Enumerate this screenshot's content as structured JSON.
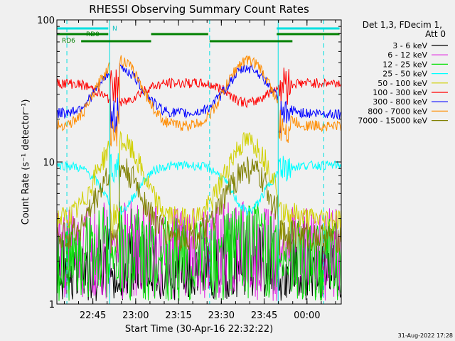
{
  "chart_data": {
    "type": "line",
    "title": "RHESSI Observing Summary Count Rates",
    "xlabel": "Start Time (30-Apr-16 22:32:22)",
    "ylabel": "Count Rate (s⁻¹ detector⁻¹)",
    "yscale": "log",
    "ylim": [
      1,
      100
    ],
    "y_tick_labels": [
      "1",
      "10",
      "100"
    ],
    "xlim": [
      "22:32:22",
      "00:12:00"
    ],
    "x_tick_labels": [
      "22:45",
      "23:00",
      "23:15",
      "23:30",
      "23:45",
      "00:00"
    ],
    "x_ticks_min": [
      12.6,
      27.6,
      42.6,
      57.6,
      72.6,
      87.6
    ],
    "legend_title": [
      "Det 1,3, FDecim 1,",
      "Att 0"
    ],
    "legend_position": "right",
    "flag_labels": {
      "rd0": "RD0",
      "rd6": "RD6",
      "n": "N"
    },
    "flag_bars": {
      "n": [
        [
          0,
          18
        ],
        [
          77,
          99
        ]
      ],
      "rd0": [
        [
          0,
          18
        ],
        [
          33,
          53
        ],
        [
          77,
          99
        ]
      ],
      "rd6": [
        [
          8.5,
          33
        ],
        [
          53.5,
          82.5
        ]
      ]
    },
    "eclipse_lines": [
      18.5,
      77.5
    ],
    "dashed_lines": [
      3.5,
      53.5,
      93.5
    ],
    "series": [
      {
        "name": "3 - 6 keV",
        "color": "#000000",
        "profile": "noise",
        "base": 2.0,
        "peak": 2.6,
        "night": 1.5
      },
      {
        "name": "6 - 12 keV",
        "color": "#e020e0",
        "profile": "noise",
        "base": 3.3,
        "peak": 3.8,
        "night": 2.6
      },
      {
        "name": "12 - 25 keV",
        "color": "#00e000",
        "profile": "noise",
        "base": 2.8,
        "peak": 3.6,
        "night": 2.0
      },
      {
        "name": "25 - 50 keV",
        "color": "#00ffff",
        "profile": "orbit",
        "base": 9.5,
        "peak": 4.5,
        "night": 9.5
      },
      {
        "name": "50 - 100 keV",
        "color": "#d0d000",
        "profile": "orbit",
        "base": 4.0,
        "peak": 14.0,
        "night": 4.0
      },
      {
        "name": "100 - 300 keV",
        "color": "#ff0000",
        "profile": "orbit",
        "base": 36,
        "peak": 26,
        "night": 36
      },
      {
        "name": "300 - 800 keV",
        "color": "#0000ff",
        "profile": "orbit",
        "base": 22,
        "peak": 46,
        "night": 22
      },
      {
        "name": "800 - 7000 keV",
        "color": "#ff8c00",
        "profile": "orbit",
        "base": 18,
        "peak": 52,
        "night": 18
      },
      {
        "name": "7000 - 15000 keV",
        "color": "#808000",
        "profile": "orbit",
        "base": 3.0,
        "peak": 9.0,
        "night": 3.0
      }
    ]
  },
  "footer": {
    "date_stamp": "31-Aug-2022 17:28"
  }
}
